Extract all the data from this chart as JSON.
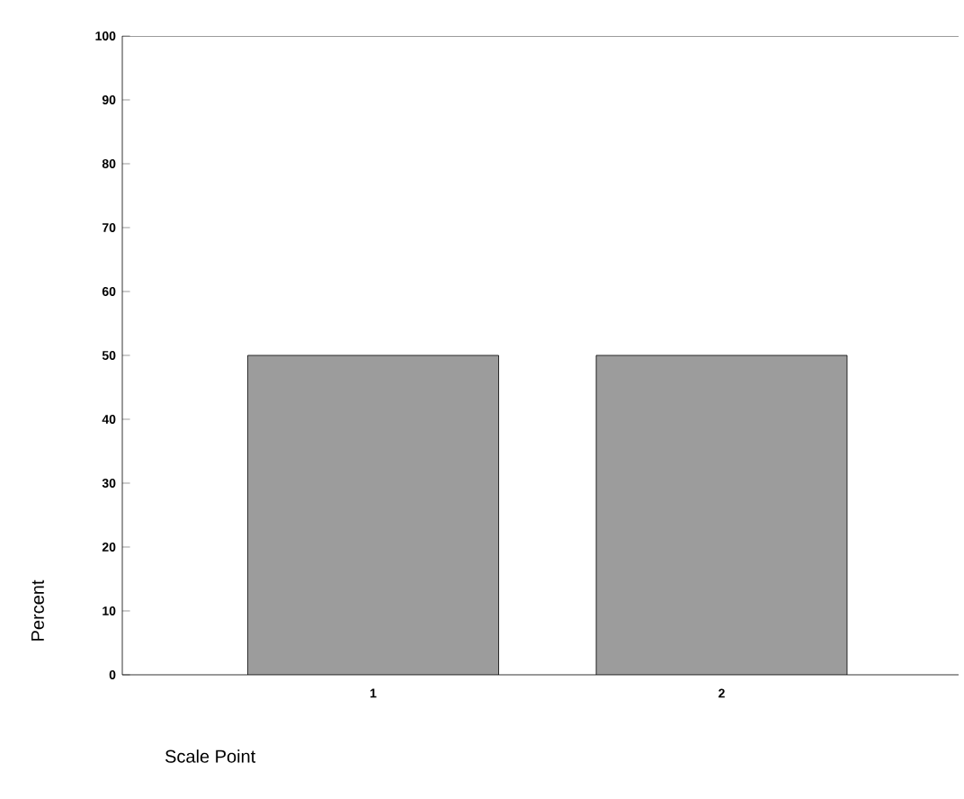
{
  "chart_data": {
    "type": "bar",
    "categories": [
      "1",
      "2"
    ],
    "values": [
      50,
      50
    ],
    "color": "#9c9c9c",
    "xlabel": "Scale Point",
    "ylabel": "Percent",
    "ylim": [
      0,
      100
    ],
    "yticks": [
      0,
      10,
      20,
      30,
      40,
      50,
      60,
      70,
      80,
      90,
      100
    ],
    "grid": false
  }
}
